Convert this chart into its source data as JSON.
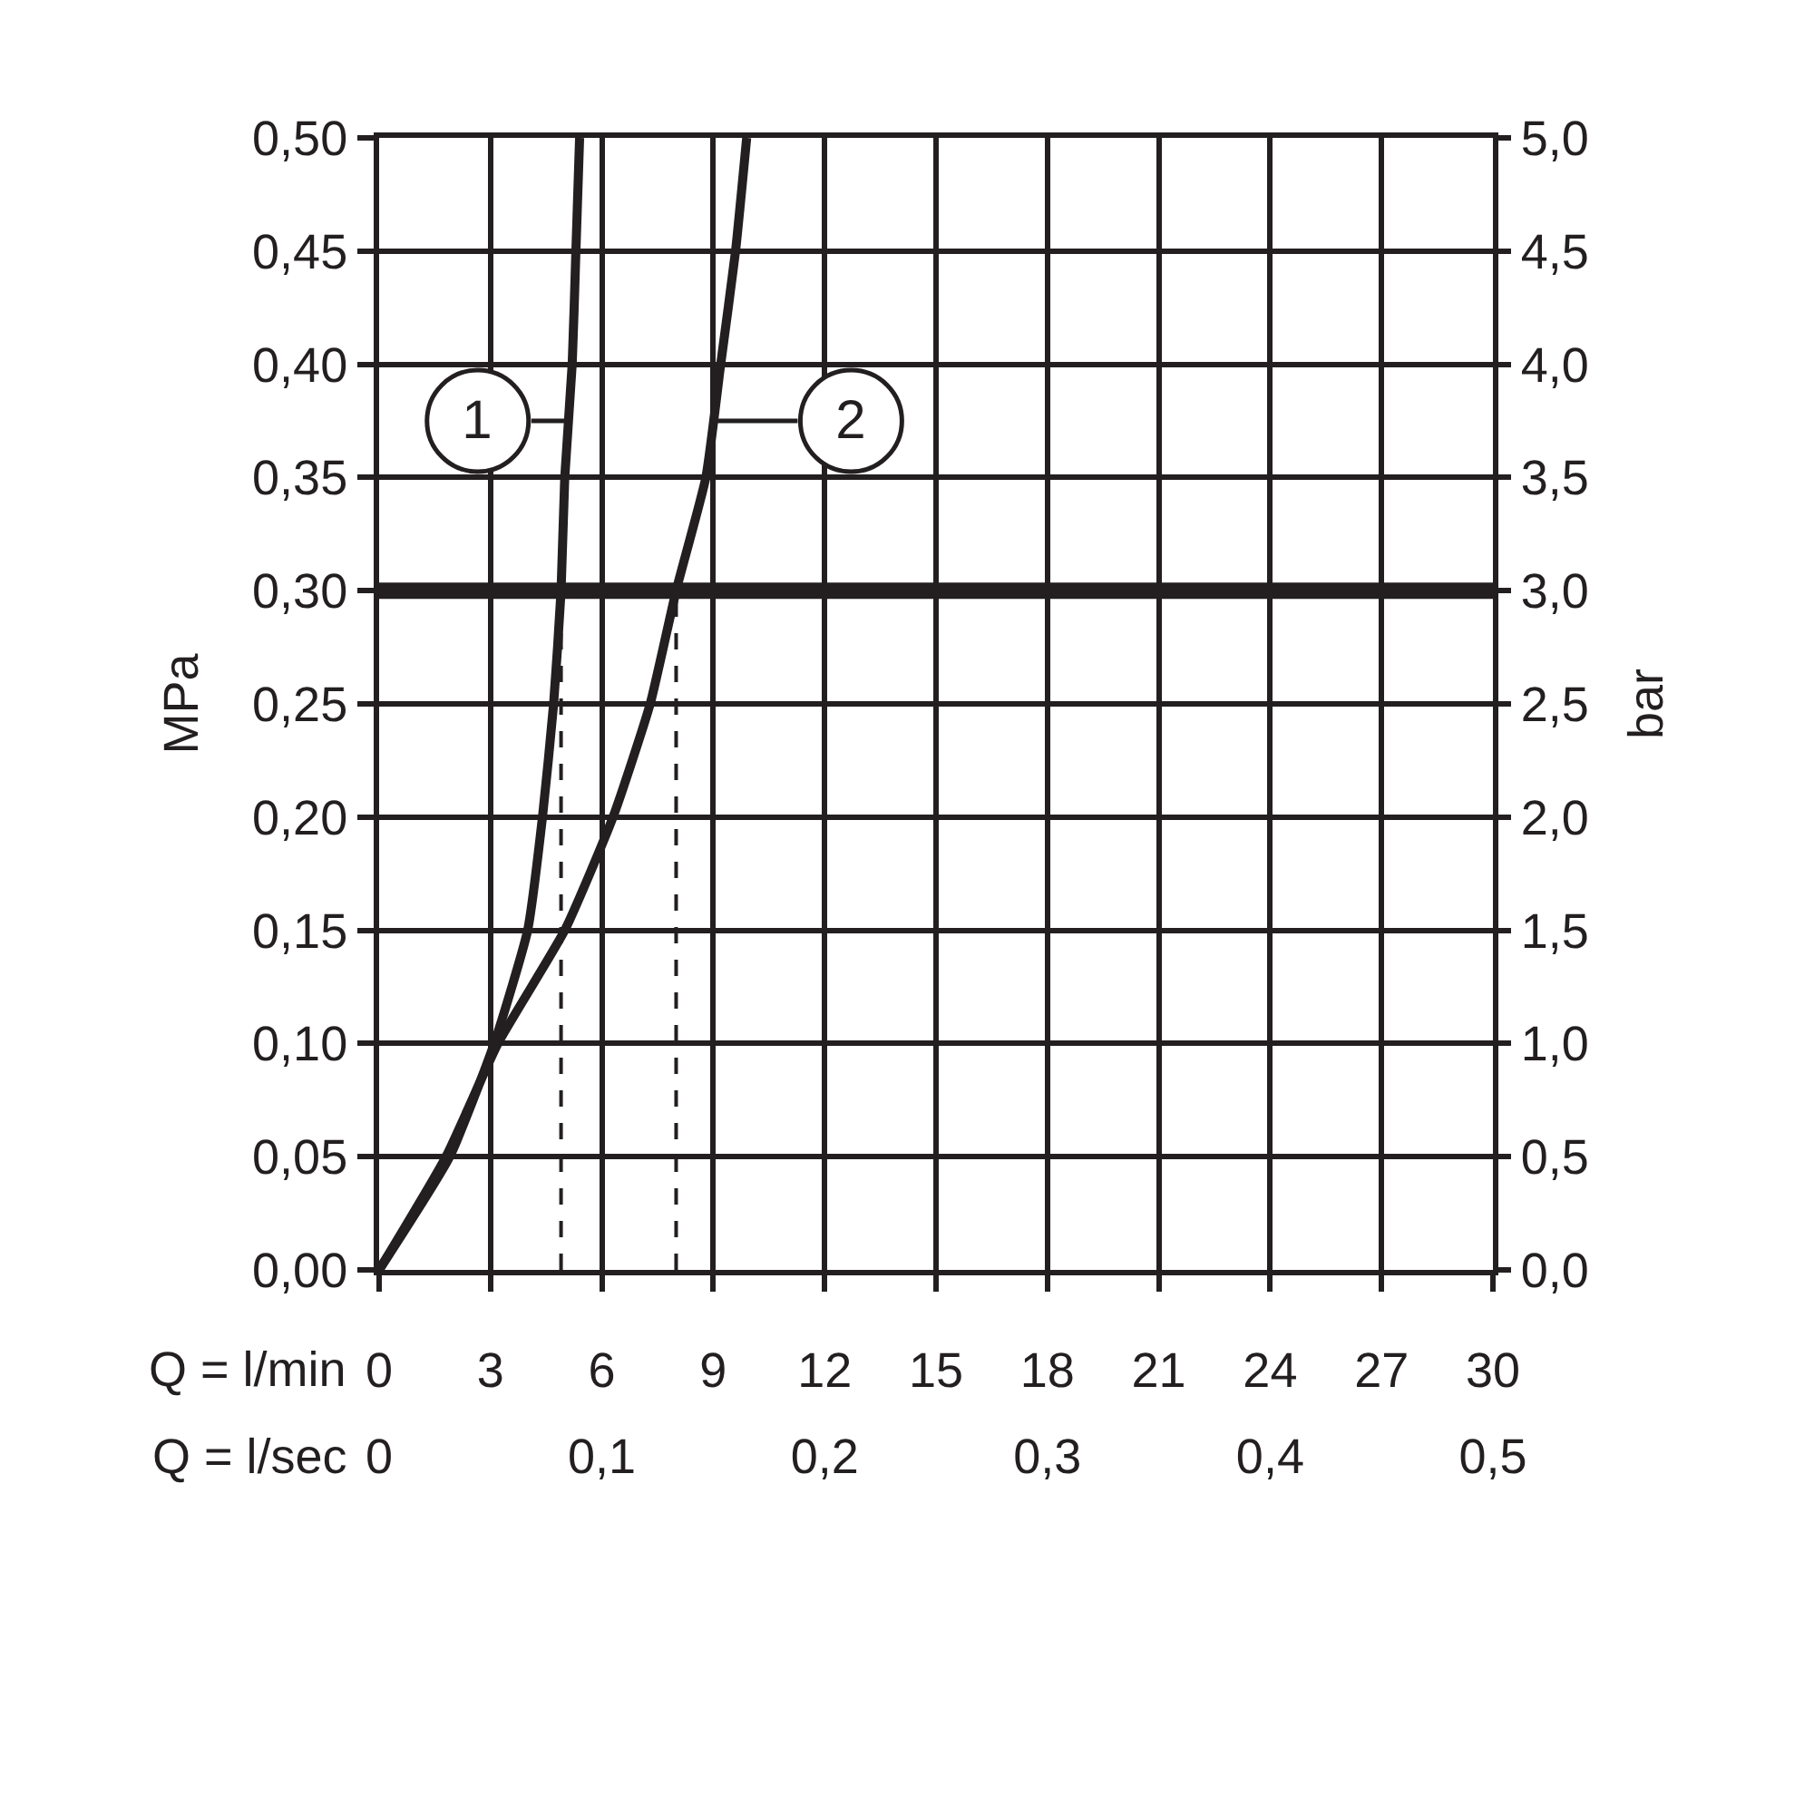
{
  "chart_data": {
    "type": "line",
    "xlabel": "Q = l/min",
    "x2label": "Q = l/sec",
    "ylabel": "MPa",
    "y2label": "bar",
    "xlim": [
      0,
      30
    ],
    "xticks": [
      0,
      3,
      6,
      9,
      12,
      15,
      18,
      21,
      24,
      27,
      30
    ],
    "x2lim": [
      0,
      0.5
    ],
    "x2ticks": [
      0,
      {
        "value": 0.1,
        "label": "0,1"
      },
      {
        "value": 0.2,
        "label": "0,2"
      },
      {
        "value": 0.3,
        "label": "0,3"
      },
      {
        "value": 0.4,
        "label": "0,4"
      },
      {
        "value": 0.5,
        "label": "0,5"
      }
    ],
    "ylim": [
      0,
      0.5
    ],
    "yticks": [
      {
        "value": 0,
        "label": "0,00"
      },
      {
        "value": 0.05,
        "label": "0,05"
      },
      {
        "value": 0.1,
        "label": "0,10"
      },
      {
        "value": 0.15,
        "label": "0,15"
      },
      {
        "value": 0.2,
        "label": "0,20"
      },
      {
        "value": 0.25,
        "label": "0,25"
      },
      {
        "value": 0.3,
        "label": "0,30"
      },
      {
        "value": 0.35,
        "label": "0,35"
      },
      {
        "value": 0.4,
        "label": "0,40"
      },
      {
        "value": 0.45,
        "label": "0,45"
      },
      {
        "value": 0.5,
        "label": "0,50"
      }
    ],
    "y2lim": [
      0,
      5
    ],
    "y2ticks": [
      {
        "value": 0,
        "label": "0,0"
      },
      {
        "value": 0.5,
        "label": "0,5"
      },
      {
        "value": 1,
        "label": "1,0"
      },
      {
        "value": 1.5,
        "label": "1,5"
      },
      {
        "value": 2,
        "label": "2,0"
      },
      {
        "value": 2.5,
        "label": "2,5"
      },
      {
        "value": 3,
        "label": "3,0"
      },
      {
        "value": 3.5,
        "label": "3,5"
      },
      {
        "value": 4,
        "label": "4,0"
      },
      {
        "value": 4.5,
        "label": "4,5"
      },
      {
        "value": 5,
        "label": "5,0"
      }
    ],
    "grid": true,
    "line_style": "solid",
    "series": [
      {
        "color": "#231f20",
        "x": [
          0,
          1.9,
          3.1,
          4.0,
          4.4,
          4.7,
          4.9,
          5.0,
          5.2,
          5.3,
          5.4
        ],
        "values": [
          0,
          0.05,
          0.1,
          0.15,
          0.2,
          0.25,
          0.3,
          0.35,
          0.4,
          0.45,
          0.5
        ]
      },
      {
        "color": "#231f20",
        "x": [
          0,
          1.8,
          3.2,
          5.0,
          6.3,
          7.3,
          8.0,
          8.8,
          9.2,
          9.6,
          9.9
        ],
        "values": [
          0,
          0.05,
          0.1,
          0.15,
          0.2,
          0.25,
          0.3,
          0.35,
          0.4,
          0.45,
          0.5
        ]
      },
      {
        "color": "#231f20",
        "line_style": "dashed",
        "x": [
          4.9,
          4.9
        ],
        "values": [
          0,
          0.3
        ]
      },
      {
        "color": "#231f20",
        "line_style": "dashed",
        "x": [
          8.0,
          8.0
        ],
        "values": [
          0,
          0.3
        ]
      }
    ],
    "ref_lines": [
      {
        "axis": "y",
        "value": 0.3,
        "color": "#231f20"
      }
    ],
    "annotations": [
      {
        "text": "1",
        "x": 5.1,
        "y": 0.375
      },
      {
        "text": "2",
        "x": 9.0,
        "y": 0.375
      }
    ]
  }
}
